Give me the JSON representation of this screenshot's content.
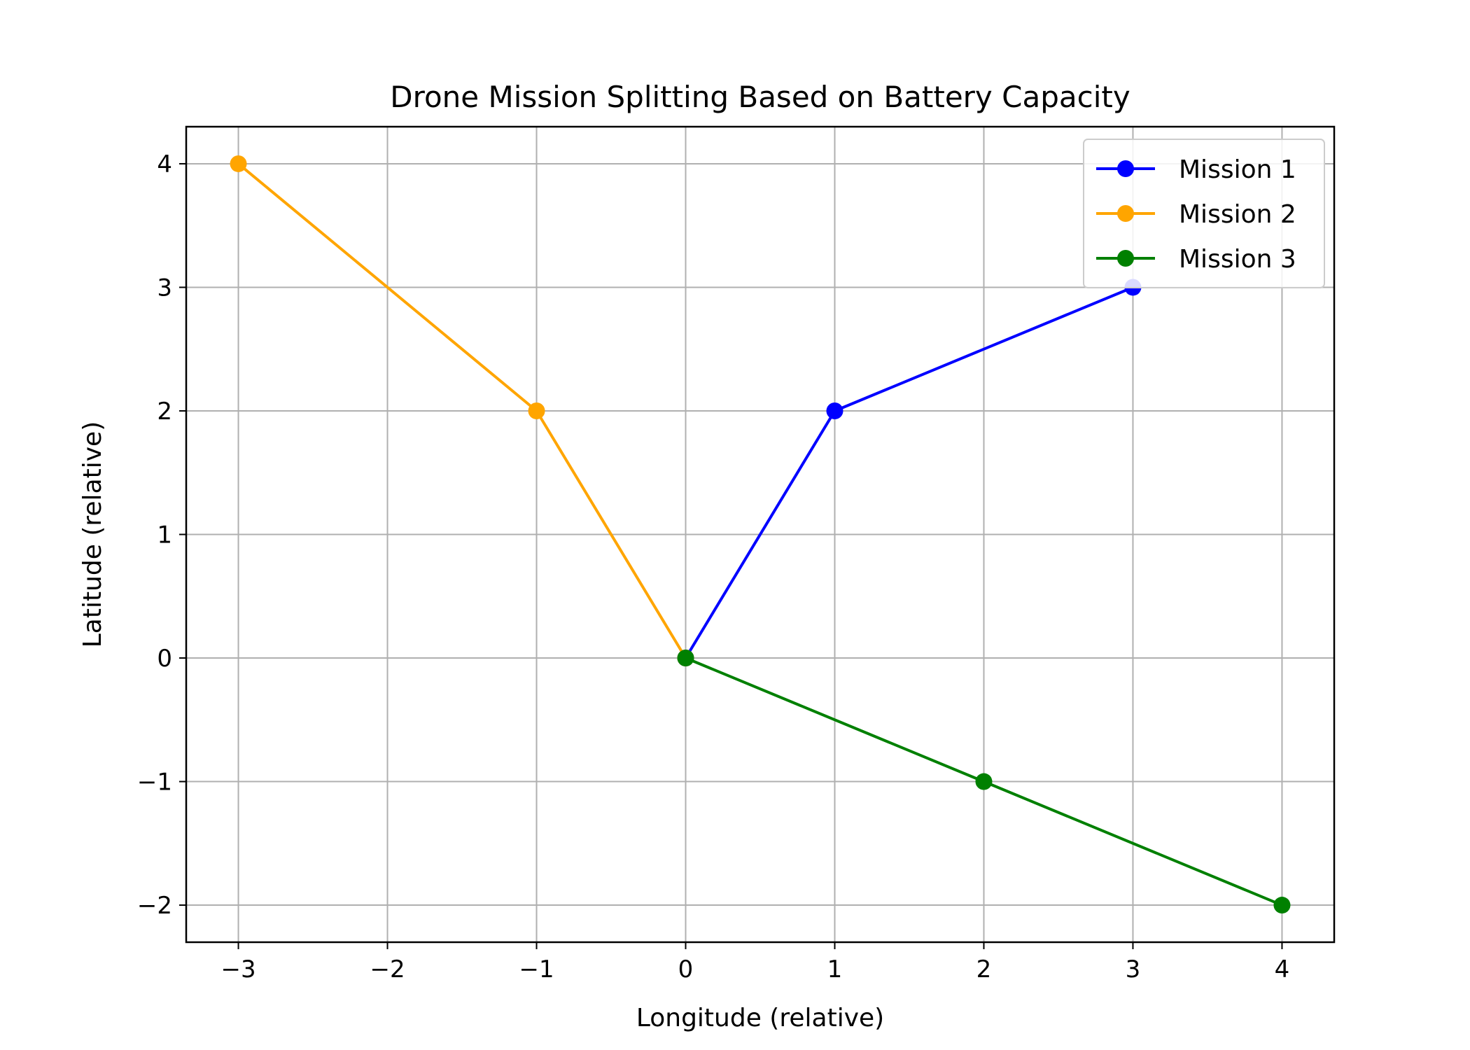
{
  "chart_data": {
    "type": "line",
    "title": "Drone Mission Splitting Based on Battery Capacity",
    "xlabel": "Longitude (relative)",
    "ylabel": "Latitude (relative)",
    "xlim": [
      -3.35,
      4.35
    ],
    "ylim": [
      -2.3,
      4.3
    ],
    "xticks": [
      -3,
      -2,
      -1,
      0,
      1,
      2,
      3,
      4
    ],
    "yticks": [
      -2,
      -1,
      0,
      1,
      2,
      3,
      4
    ],
    "xtick_labels": [
      "−3",
      "−2",
      "−1",
      "0",
      "1",
      "2",
      "3",
      "4"
    ],
    "ytick_labels": [
      "−2",
      "−1",
      "0",
      "1",
      "2",
      "3",
      "4"
    ],
    "grid": true,
    "legend_position": "top-right",
    "series": [
      {
        "name": "Mission 1",
        "color": "#0000ff",
        "x": [
          0,
          1,
          3
        ],
        "y": [
          0,
          2,
          3
        ]
      },
      {
        "name": "Mission 2",
        "color": "#ffa500",
        "x": [
          0,
          -1,
          -3
        ],
        "y": [
          0,
          2,
          4
        ]
      },
      {
        "name": "Mission 3",
        "color": "#008000",
        "x": [
          0,
          2,
          4
        ],
        "y": [
          0,
          -1,
          -2
        ]
      }
    ]
  }
}
